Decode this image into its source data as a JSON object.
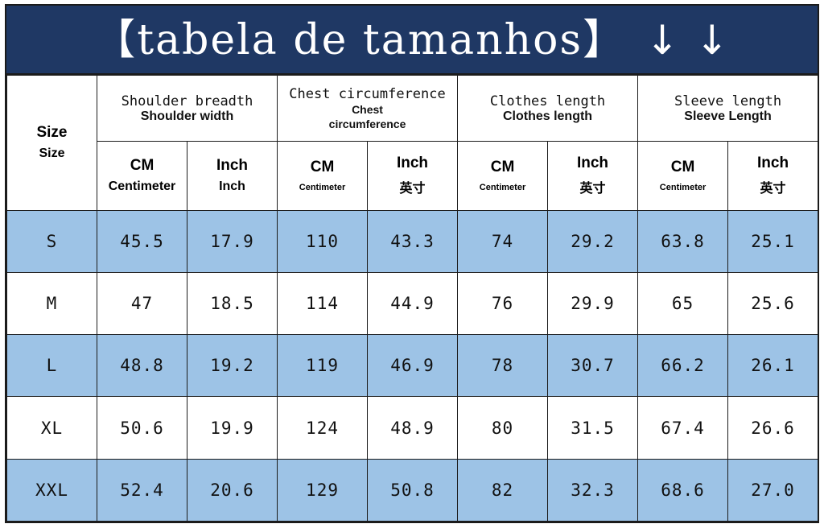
{
  "title": {
    "text": "【tabela de tamanhos】",
    "arrows": "↓ ↓"
  },
  "header": {
    "size_label": "Size",
    "size_sub": "Size",
    "groups": [
      {
        "en": "Shoulder breadth",
        "cn": "Shoulder width"
      },
      {
        "en": "Chest circumference",
        "cn": "Chest circumference"
      },
      {
        "en": "Clothes length",
        "cn": "Clothes length"
      },
      {
        "en": "Sleeve length",
        "cn": "Sleeve Length"
      }
    ],
    "units": [
      {
        "a": "CM",
        "b": "Centimeter"
      },
      {
        "a": "Inch",
        "b": "Inch"
      },
      {
        "a": "CM",
        "b": "Centimeter"
      },
      {
        "a": "Inch",
        "b": "英寸"
      },
      {
        "a": "CM",
        "b": "Centimeter"
      },
      {
        "a": "Inch",
        "b": "英寸"
      },
      {
        "a": "CM",
        "b": "Centimeter"
      },
      {
        "a": "Inch",
        "b": "英寸"
      }
    ]
  },
  "rows": [
    {
      "size": "S",
      "values": [
        "45.5",
        "17.9",
        "110",
        "43.3",
        "74",
        "29.2",
        "63.8",
        "25.1"
      ]
    },
    {
      "size": "M",
      "values": [
        "47",
        "18.5",
        "114",
        "44.9",
        "76",
        "29.9",
        "65",
        "25.6"
      ]
    },
    {
      "size": "L",
      "values": [
        "48.8",
        "19.2",
        "119",
        "46.9",
        "78",
        "30.7",
        "66.2",
        "26.1"
      ]
    },
    {
      "size": "XL",
      "values": [
        "50.6",
        "19.9",
        "124",
        "48.9",
        "80",
        "31.5",
        "67.4",
        "26.6"
      ]
    },
    {
      "size": "XXL",
      "values": [
        "52.4",
        "20.6",
        "129",
        "50.8",
        "82",
        "32.3",
        "68.6",
        "27.0"
      ]
    }
  ],
  "colors": {
    "title_bg": "#1f3864",
    "band_blue": "#9dc3e6",
    "band_white": "#ffffff"
  }
}
